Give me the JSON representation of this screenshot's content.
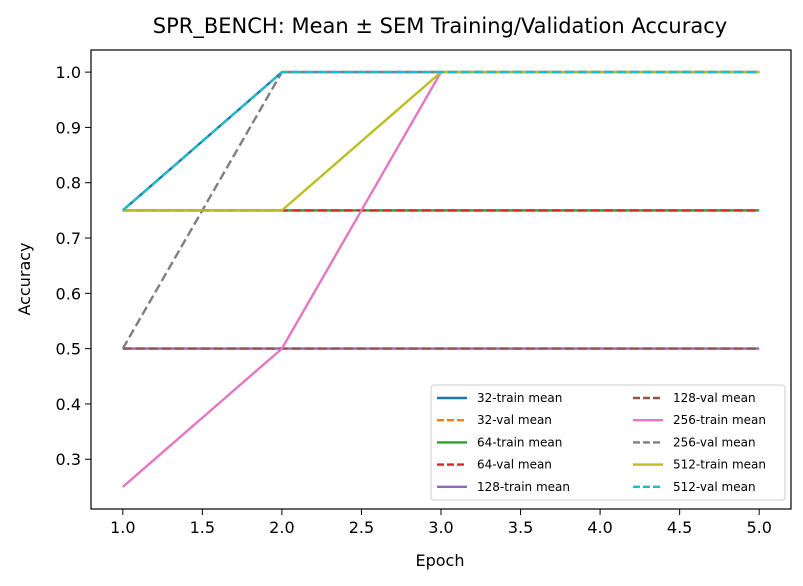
{
  "chart_data": {
    "type": "line",
    "title": "SPR_BENCH: Mean ± SEM Training/Validation Accuracy",
    "xlabel": "Epoch",
    "ylabel": "Accuracy",
    "xlim": [
      0.8,
      5.2
    ],
    "ylim": [
      0.21,
      1.04
    ],
    "x": [
      1,
      2,
      3,
      4,
      5
    ],
    "xticks": [
      "1.0",
      "1.5",
      "2.0",
      "2.5",
      "3.0",
      "3.5",
      "4.0",
      "4.5",
      "5.0"
    ],
    "yticks": [
      "0.3",
      "0.4",
      "0.5",
      "0.6",
      "0.7",
      "0.8",
      "0.9",
      "1.0"
    ],
    "legend_position": "lower-right",
    "grid": false,
    "series": [
      {
        "name": "32-train mean",
        "color": "#1f77b4",
        "dash": "solid",
        "values": [
          0.75,
          1.0,
          1.0,
          1.0,
          1.0
        ]
      },
      {
        "name": "32-val mean",
        "color": "#ff7f0e",
        "dash": "dashed",
        "values": [
          0.75,
          1.0,
          1.0,
          1.0,
          1.0
        ]
      },
      {
        "name": "64-train mean",
        "color": "#2ca02c",
        "dash": "solid",
        "values": [
          0.75,
          0.75,
          0.75,
          0.75,
          0.75
        ]
      },
      {
        "name": "64-val mean",
        "color": "#d62728",
        "dash": "dashed",
        "values": [
          0.75,
          0.75,
          0.75,
          0.75,
          0.75
        ]
      },
      {
        "name": "128-train mean",
        "color": "#9467bd",
        "dash": "solid",
        "values": [
          0.5,
          0.5,
          0.5,
          0.5,
          0.5
        ]
      },
      {
        "name": "128-val mean",
        "color": "#8c564b",
        "dash": "dashed",
        "values": [
          0.5,
          0.5,
          0.5,
          0.5,
          0.5
        ]
      },
      {
        "name": "256-train mean",
        "color": "#e377c2",
        "dash": "solid",
        "values": [
          0.25,
          0.5,
          1.0,
          1.0,
          1.0
        ]
      },
      {
        "name": "256-val mean",
        "color": "#7f7f7f",
        "dash": "dashed",
        "values": [
          0.5,
          1.0,
          1.0,
          1.0,
          1.0
        ]
      },
      {
        "name": "512-train mean",
        "color": "#bcbd22",
        "dash": "solid",
        "values": [
          0.75,
          0.75,
          1.0,
          1.0,
          1.0
        ]
      },
      {
        "name": "512-val mean",
        "color": "#17becf",
        "dash": "dashed",
        "values": [
          0.75,
          1.0,
          1.0,
          1.0,
          1.0
        ]
      }
    ]
  }
}
